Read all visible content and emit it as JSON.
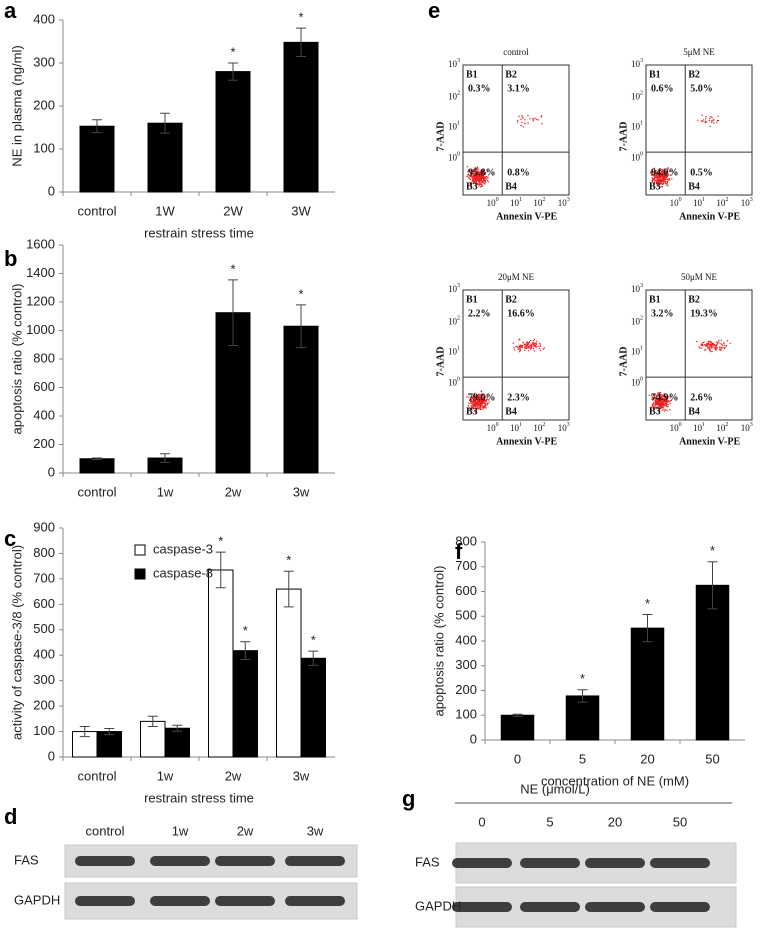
{
  "chart_data": [
    {
      "type": "bar",
      "label": "a",
      "categories": [
        "control",
        "1W",
        "2W",
        "3W"
      ],
      "values": [
        153,
        160,
        280,
        348
      ],
      "errors": [
        15,
        23,
        20,
        33
      ],
      "color": "#000000",
      "ylim": [
        0,
        400
      ],
      "yticks": [
        0,
        100,
        200,
        300,
        400
      ],
      "y_axis_label": "NE in plasma  (ng/ml)",
      "x_axis_label": "restrain stress  time",
      "annotations": [
        {
          "category": "2W",
          "text": "*"
        },
        {
          "category": "3W",
          "text": "*"
        }
      ]
    },
    {
      "type": "bar",
      "label": "b",
      "categories": [
        "control",
        "1w",
        "2w",
        "3w"
      ],
      "values": [
        100,
        105,
        1125,
        1030
      ],
      "errors": [
        5,
        30,
        230,
        150
      ],
      "color": "#000000",
      "ylim": [
        0,
        1600
      ],
      "yticks": [
        0,
        200,
        400,
        600,
        800,
        1000,
        1200,
        1400,
        1600
      ],
      "y_axis_label": "apoptosis ratio (% control)",
      "annotations": [
        {
          "category": "2w",
          "text": "*"
        },
        {
          "category": "3w",
          "text": "*"
        }
      ]
    },
    {
      "type": "bar",
      "label": "c",
      "categories": [
        "control",
        "1w",
        "2w",
        "3w"
      ],
      "series": [
        {
          "name": "caspase-3",
          "color": "#ffffff",
          "values": [
            100,
            140,
            735,
            660
          ],
          "errors": [
            20,
            20,
            70,
            70
          ]
        },
        {
          "name": "caspase-8",
          "color": "#000000",
          "values": [
            100,
            113,
            418,
            388
          ],
          "errors": [
            12,
            12,
            35,
            28
          ]
        }
      ],
      "ylim": [
        0,
        900
      ],
      "yticks": [
        0,
        100,
        200,
        300,
        400,
        500,
        600,
        700,
        800,
        900
      ],
      "y_axis_label": "activity of caspase-3/8 (% control)",
      "x_axis_label": "restrain stress time",
      "annotations": [
        {
          "category": "2w",
          "series": "caspase-3",
          "text": "*"
        },
        {
          "category": "2w",
          "series": "caspase-8",
          "text": "*"
        },
        {
          "category": "3w",
          "series": "caspase-3",
          "text": "*"
        },
        {
          "category": "3w",
          "series": "caspase-8",
          "text": "*"
        }
      ]
    },
    {
      "type": "bar",
      "label": "f",
      "categories": [
        "0",
        "5",
        "20",
        "50"
      ],
      "values": [
        100,
        178,
        452,
        625
      ],
      "errors": [
        4,
        25,
        55,
        95
      ],
      "color": "#000000",
      "ylim": [
        0,
        800
      ],
      "yticks": [
        0,
        100,
        200,
        300,
        400,
        500,
        600,
        700,
        800
      ],
      "y_axis_label": "apoptosis ratio (% control)",
      "x_axis_label": "concentration of NE (mM)",
      "annotations": [
        {
          "category": "5",
          "text": "*"
        },
        {
          "category": "20",
          "text": "*"
        },
        {
          "category": "50",
          "text": "*"
        }
      ]
    }
  ],
  "flow_cytometry": {
    "label": "e",
    "y_axis_label": "7-AAD",
    "x_axis_label": "Annexin V-PE",
    "ticks": [
      {
        "base": "10",
        "exp": "0"
      },
      {
        "base": "10",
        "exp": "1"
      },
      {
        "base": "10",
        "exp": "2"
      },
      {
        "base": "10",
        "exp": "3"
      }
    ],
    "plots": [
      {
        "title": "control",
        "quadrants": [
          {
            "name": "B1",
            "value": "0.3%"
          },
          {
            "name": "B2",
            "value": "3.1%"
          },
          {
            "name": "B3",
            "value": "95.8%"
          },
          {
            "name": "B4",
            "value": "0.8%"
          }
        ]
      },
      {
        "title": "5μM NE",
        "quadrants": [
          {
            "name": "B1",
            "value": "0.6%"
          },
          {
            "name": "B2",
            "value": "5.0%"
          },
          {
            "name": "B3",
            "value": "94.0%"
          },
          {
            "name": "B4",
            "value": "0.5%"
          }
        ]
      },
      {
        "title": "20μM NE",
        "quadrants": [
          {
            "name": "B1",
            "value": "2.2%"
          },
          {
            "name": "B2",
            "value": "16.6%"
          },
          {
            "name": "B3",
            "value": "79.0%"
          },
          {
            "name": "B4",
            "value": "2.3%"
          }
        ]
      },
      {
        "title": "50μM NE",
        "quadrants": [
          {
            "name": "B1",
            "value": "3.2%"
          },
          {
            "name": "B2",
            "value": "19.3%"
          },
          {
            "name": "B3",
            "value": "74.9%"
          },
          {
            "name": "B4",
            "value": "2.6%"
          }
        ]
      }
    ]
  },
  "western_blots": [
    {
      "label": "d",
      "columns": [
        "control",
        "1w",
        "2w",
        "3w"
      ],
      "rows": [
        "FAS",
        "GAPDH"
      ]
    },
    {
      "label": "g",
      "header": "NE  (μmol/L)",
      "columns": [
        "0",
        "5",
        "20",
        "50"
      ],
      "rows": [
        "FAS",
        "GAPDH"
      ]
    }
  ]
}
